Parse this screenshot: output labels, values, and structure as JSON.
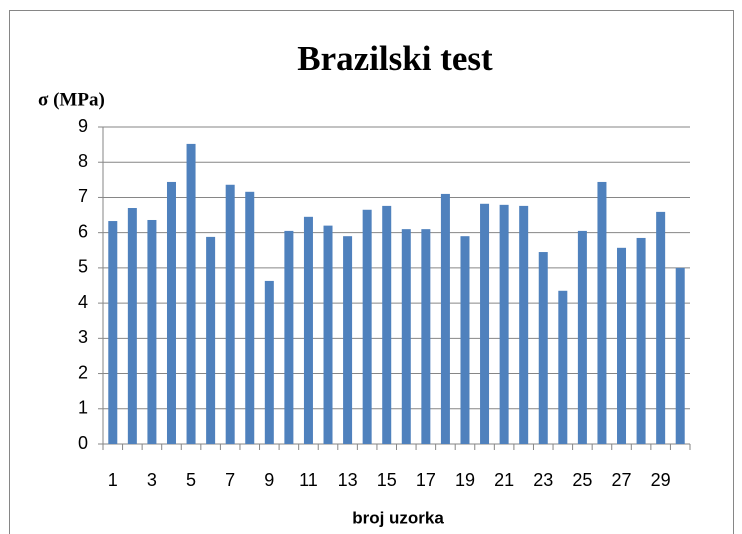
{
  "chart_data": {
    "type": "bar",
    "title": "Brazilski test",
    "y_label": "σ (MPa)",
    "x_label": "broj uzorka",
    "categories": [
      1,
      null,
      3,
      null,
      5,
      null,
      7,
      null,
      9,
      null,
      11,
      null,
      13,
      null,
      15,
      null,
      17,
      null,
      19,
      null,
      21,
      null,
      23,
      null,
      25,
      null,
      27,
      null,
      29,
      null
    ],
    "values": [
      6.33,
      6.7,
      6.36,
      7.44,
      8.52,
      5.88,
      7.36,
      7.16,
      4.63,
      6.05,
      6.45,
      6.2,
      5.9,
      6.65,
      6.76,
      6.1,
      6.1,
      7.1,
      5.9,
      6.82,
      6.79,
      6.76,
      5.45,
      4.35,
      6.05,
      7.44,
      5.57,
      5.85,
      6.59,
      5.0
    ],
    "color": "#4f81bd",
    "ylim": [
      0,
      9
    ],
    "yticks": [
      0,
      1,
      2,
      3,
      4,
      5,
      6,
      7,
      8,
      9
    ],
    "grid": true
  }
}
